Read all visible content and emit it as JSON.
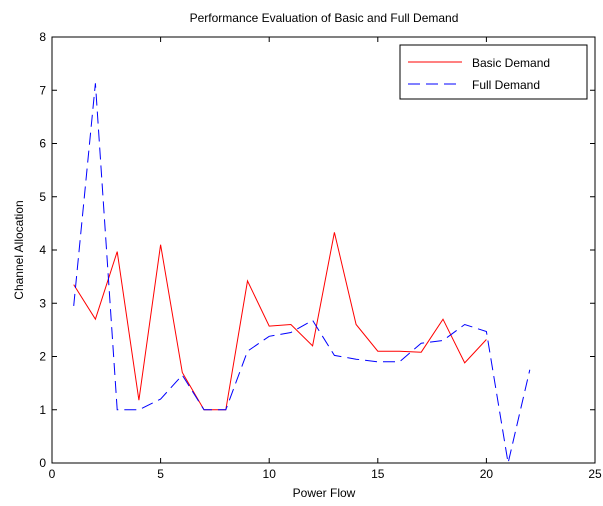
{
  "chart_data": {
    "type": "line",
    "title": "Performance Evaluation of Basic and Full Demand",
    "xlabel": "Power Flow",
    "ylabel": "Channel Allocation",
    "xlim": [
      0,
      25
    ],
    "ylim": [
      0,
      8
    ],
    "xticks": [
      0,
      5,
      10,
      15,
      20,
      25
    ],
    "yticks": [
      0,
      1,
      2,
      3,
      4,
      5,
      6,
      7,
      8
    ],
    "grid": false,
    "legend_position": "top-right",
    "series": [
      {
        "name": "Basic Demand",
        "color": "#ff0000",
        "style": "solid",
        "x": [
          1,
          2,
          3,
          4,
          5,
          6,
          7,
          8,
          9,
          10,
          11,
          12,
          13,
          14,
          15,
          16,
          17,
          18,
          19,
          20
        ],
        "y": [
          3.35,
          2.7,
          3.97,
          1.18,
          4.1,
          1.7,
          1.0,
          1.0,
          3.42,
          2.57,
          2.6,
          2.2,
          4.33,
          2.6,
          2.1,
          2.1,
          2.08,
          2.7,
          1.88,
          2.32
        ]
      },
      {
        "name": "Full Demand",
        "color": "#0000ff",
        "style": "dashed",
        "x": [
          1,
          2,
          3,
          4,
          5,
          6,
          7,
          8,
          9,
          10,
          11,
          12,
          13,
          14,
          15,
          16,
          17,
          18,
          19,
          20,
          21,
          22
        ],
        "y": [
          2.95,
          7.13,
          1.0,
          1.0,
          1.2,
          1.65,
          1.0,
          1.0,
          2.1,
          2.38,
          2.45,
          2.68,
          2.02,
          1.95,
          1.9,
          1.9,
          2.25,
          2.3,
          2.6,
          2.47,
          0.0,
          1.75
        ]
      }
    ]
  }
}
